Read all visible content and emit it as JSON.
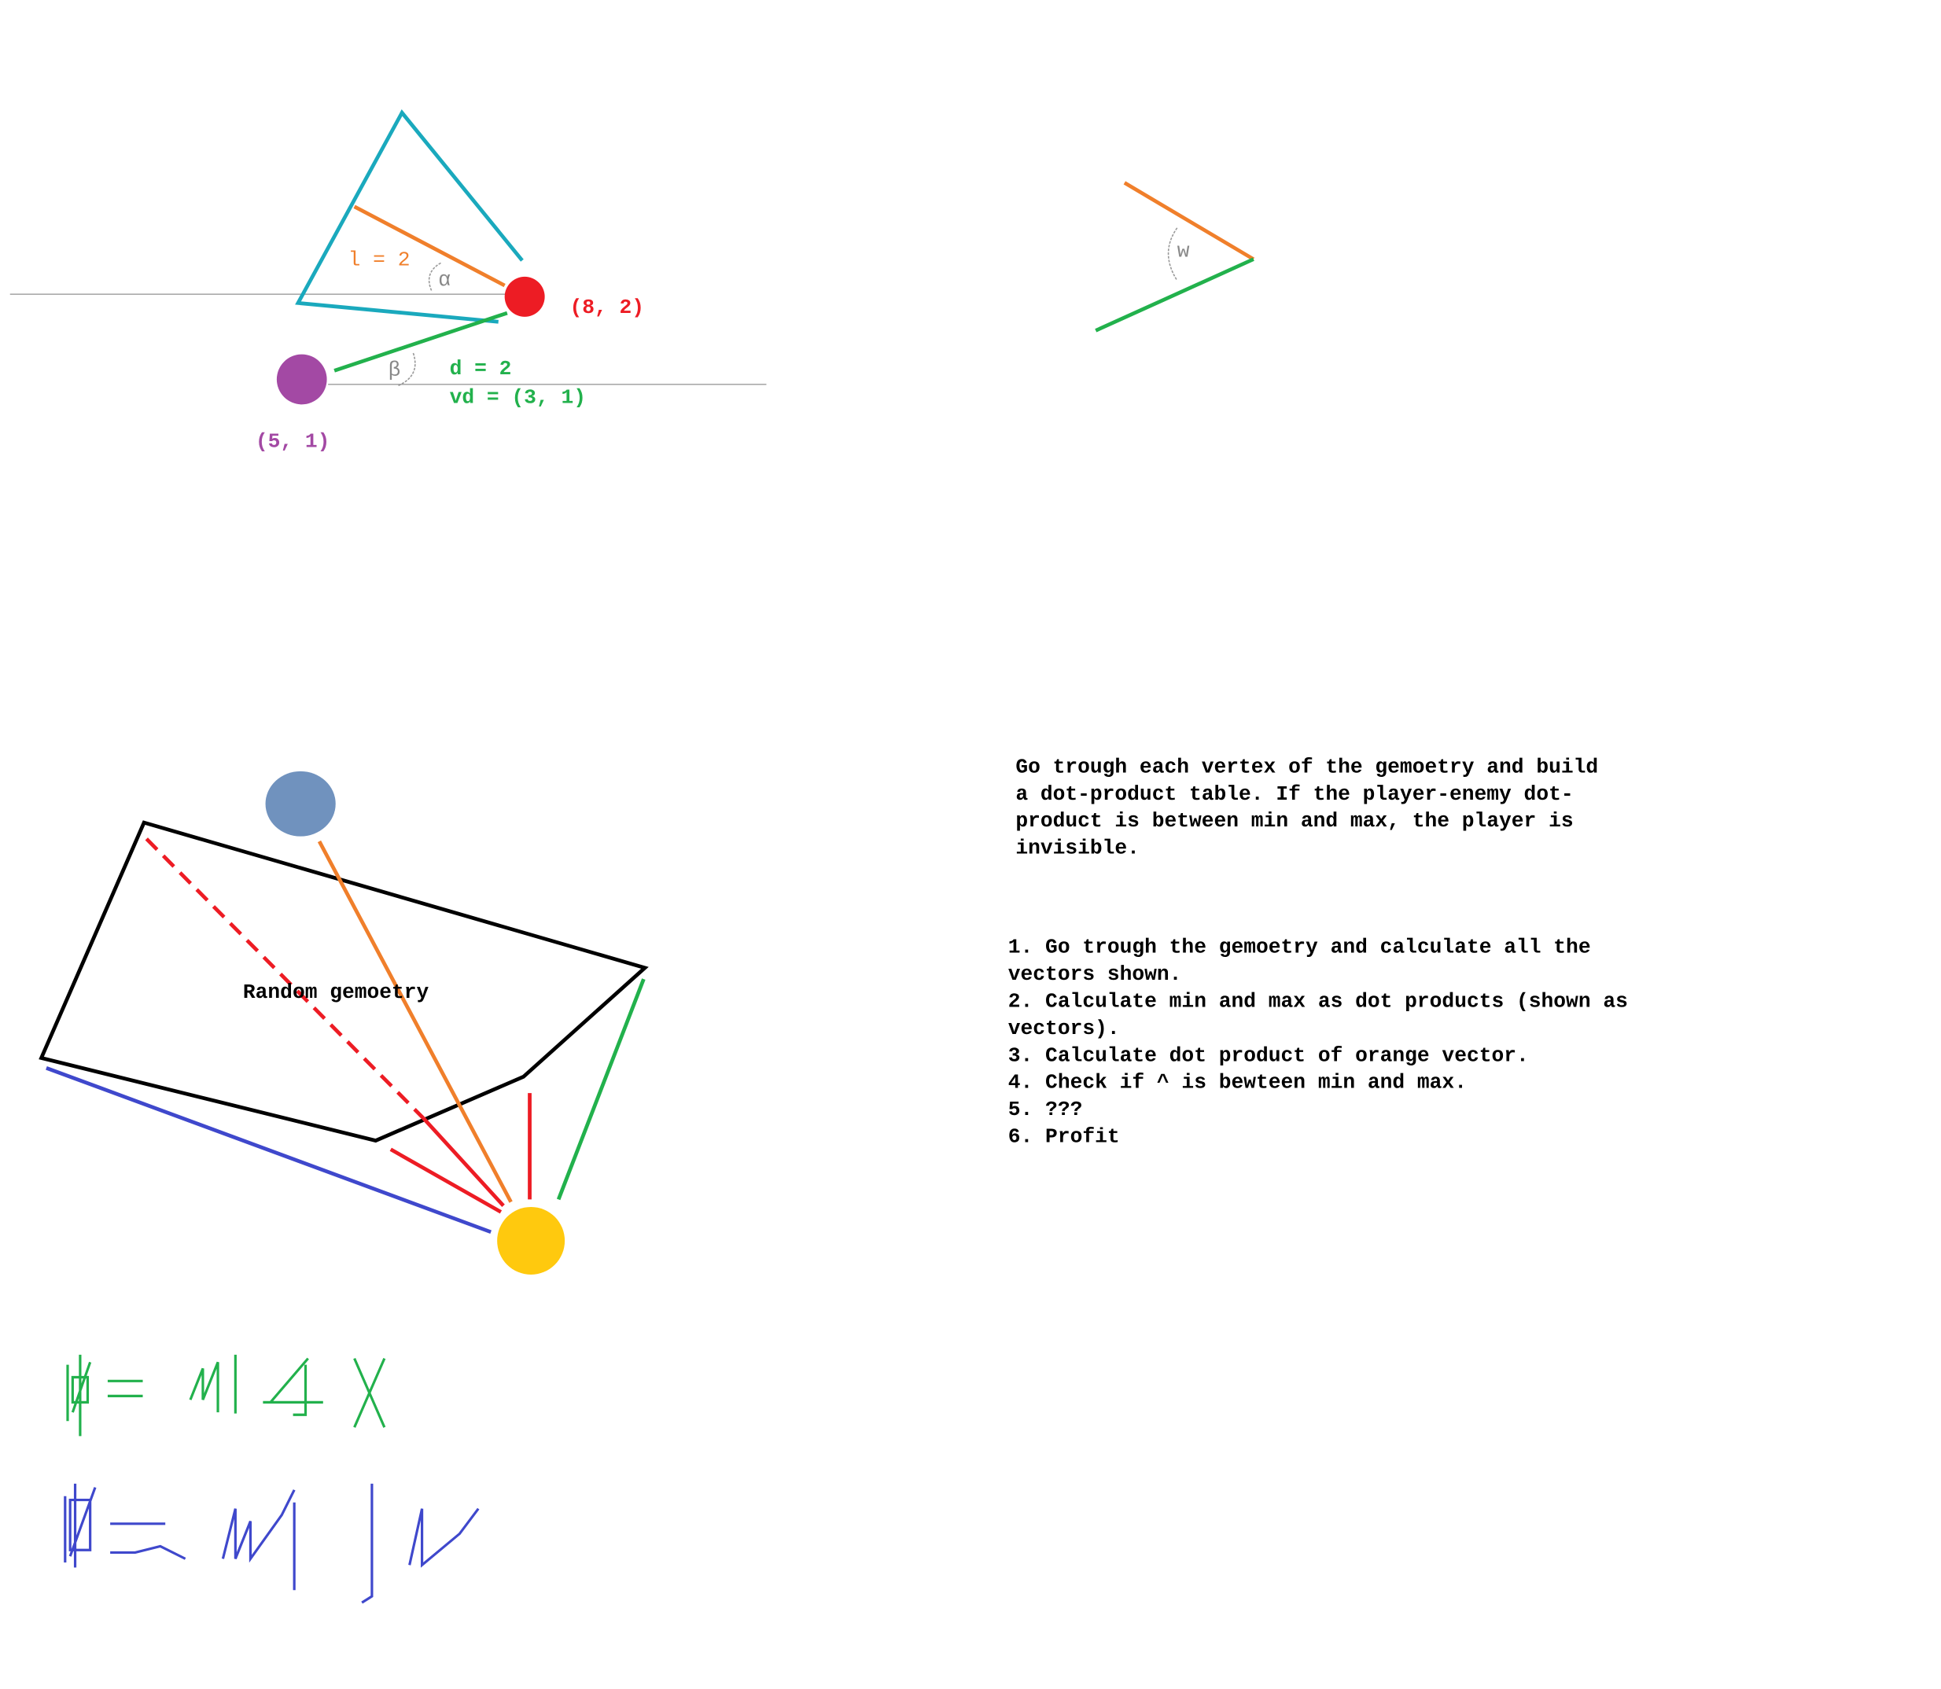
{
  "top_diagram": {
    "length_label": "l = 2",
    "alpha": "α",
    "enemy_position": "(8, 2)",
    "beta": "β",
    "distance_label": "d = 2",
    "vector_label": "vd = (3, 1)",
    "player_position": "(5, 1)",
    "angle_label": "w"
  },
  "geometry_label": "Random gemoetry",
  "description": [
    "Go trough each vertex of the gemoetry and build",
    "a dot-product table. If the player-enemy dot-",
    "product is between min and max, the player is",
    "invisible."
  ],
  "steps": [
    "1. Go trough the gemoetry and calculate all the",
    "vectors shown.",
    "2. Calculate min and max as dot products (shown as",
    "vectors).",
    "3. Calculate dot product of orange vector.",
    "4. Check if ^ is bewteen min and max.",
    "5. ???",
    "6. Profit"
  ]
}
